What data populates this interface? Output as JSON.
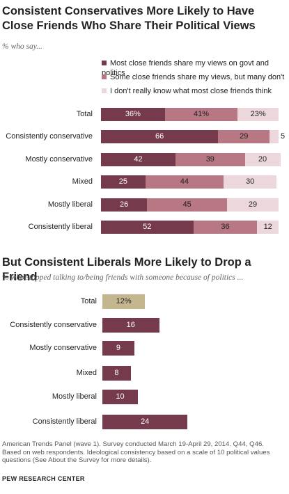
{
  "colors": {
    "dark": "#753a4c",
    "mid": "#b77783",
    "light": "#ecd8dc",
    "tan": "#c4b68e"
  },
  "chart1_title_line1": "Consistent Conservatives More Likely to Have",
  "chart1_title_line2": "Close Friends Who Share Their Political Views",
  "chart1_subtitle": "% who say...",
  "chart2_title": "But Consistent Liberals More Likely to Drop a Friend",
  "chart2_subtitle": "% who stopped talking to/being friends with someone because of politics ...",
  "notes": [
    "American Trends Panel (wave 1). Survey conducted March 19-April 29, 2014. Q44, Q46.",
    "Based on web respondents. Ideological consistency based on a scale of 10 political values",
    "questions (See About the Survey for more details)."
  ],
  "source": "PEW RESEARCH CENTER",
  "chart_data": [
    {
      "type": "bar",
      "stacked": true,
      "orientation": "horizontal",
      "title": "Consistent Conservatives More Likely to Have Close Friends Who Share Their Political Views",
      "subtitle": "% who say...",
      "categories": [
        "Total",
        "Consistently conservative",
        "Mostly conservative",
        "Mixed",
        "Mostly liberal",
        "Consistently liberal"
      ],
      "series": [
        {
          "name": "Most close friends share my views on govt and politics",
          "color": "#753a4c",
          "values": [
            36,
            66,
            42,
            25,
            26,
            52
          ]
        },
        {
          "name": "Some close friends share my views, but many don't",
          "color": "#b77783",
          "values": [
            41,
            29,
            39,
            44,
            45,
            36
          ]
        },
        {
          "name": "I don't really know what most close friends think",
          "color": "#ecd8dc",
          "values": [
            23,
            5,
            20,
            30,
            29,
            12
          ]
        }
      ],
      "value_labels": [
        [
          "36%",
          "41%",
          "23%"
        ],
        [
          "66",
          "29",
          "5"
        ],
        [
          "42",
          "39",
          "20"
        ],
        [
          "25",
          "44",
          "30"
        ],
        [
          "26",
          "45",
          "29"
        ],
        [
          "52",
          "36",
          "12"
        ]
      ],
      "xlim": [
        0,
        100
      ],
      "legend": "top"
    },
    {
      "type": "bar",
      "orientation": "horizontal",
      "title": "But Consistent Liberals More Likely to Drop a Friend",
      "subtitle": "% who stopped talking to/being friends with someone because of politics ...",
      "categories": [
        "Total",
        "Consistently conservative",
        "Mostly conservative",
        "Mixed",
        "Mostly liberal",
        "Consistently liberal"
      ],
      "values": [
        12,
        16,
        9,
        8,
        10,
        24
      ],
      "value_labels": [
        "12%",
        "16",
        "9",
        "8",
        "10",
        "24"
      ],
      "colors": [
        "#c4b68e",
        "#753a4c",
        "#753a4c",
        "#753a4c",
        "#753a4c",
        "#753a4c"
      ]
    }
  ]
}
